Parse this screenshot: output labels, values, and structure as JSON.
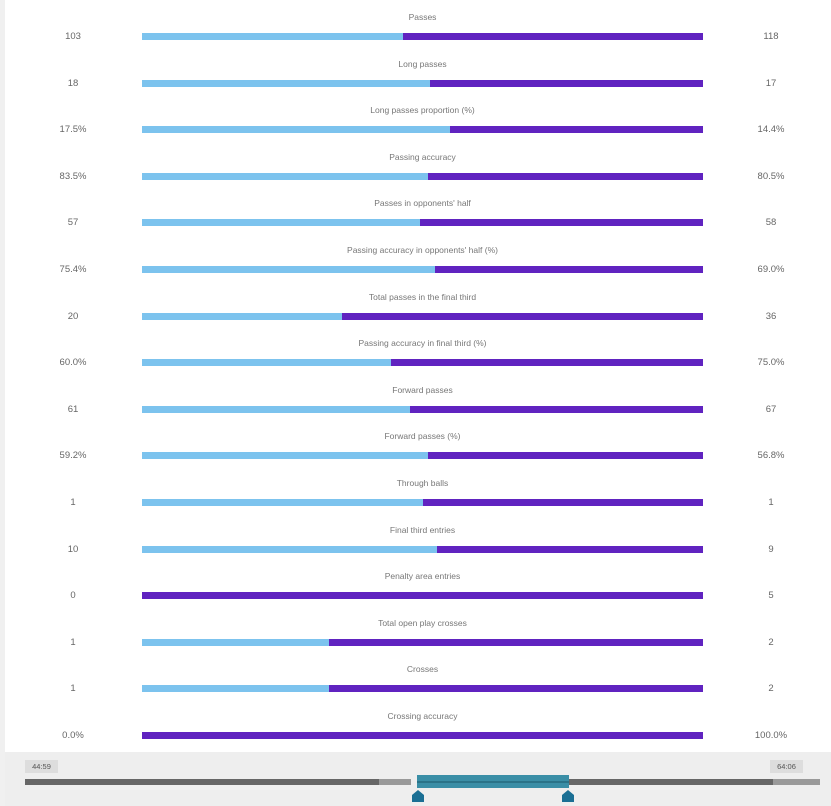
{
  "colors": {
    "home_bar": "#7cc3ee",
    "away_bar": "#6023c0",
    "selection": "#3a8ea6",
    "handle": "#1a6f94"
  },
  "stats": [
    {
      "label": "Passes",
      "home": "103",
      "away": "118",
      "home_share": 0.466
    },
    {
      "label": "Long passes",
      "home": "18",
      "away": "17",
      "home_share": 0.514
    },
    {
      "label": "Long passes proportion (%)",
      "home": "17.5%",
      "away": "14.4%",
      "home_share": 0.549
    },
    {
      "label": "Passing accuracy",
      "home": "83.5%",
      "away": "80.5%",
      "home_share": 0.509
    },
    {
      "label": "Passes in opponents' half",
      "home": "57",
      "away": "58",
      "home_share": 0.496
    },
    {
      "label": "Passing accuracy in opponents' half (%)",
      "home": "75.4%",
      "away": "69.0%",
      "home_share": 0.522
    },
    {
      "label": "Total passes in the final third",
      "home": "20",
      "away": "36",
      "home_share": 0.357
    },
    {
      "label": "Passing accuracy in final third (%)",
      "home": "60.0%",
      "away": "75.0%",
      "home_share": 0.444
    },
    {
      "label": "Forward passes",
      "home": "61",
      "away": "67",
      "home_share": 0.477
    },
    {
      "label": "Forward passes (%)",
      "home": "59.2%",
      "away": "56.8%",
      "home_share": 0.51
    },
    {
      "label": "Through balls",
      "home": "1",
      "away": "1",
      "home_share": 0.5
    },
    {
      "label": "Final third entries",
      "home": "10",
      "away": "9",
      "home_share": 0.526
    },
    {
      "label": "Penalty area entries",
      "home": "0",
      "away": "5",
      "home_share": 0.0
    },
    {
      "label": "Total open play crosses",
      "home": "1",
      "away": "2",
      "home_share": 0.333
    },
    {
      "label": "Crosses",
      "home": "1",
      "away": "2",
      "home_share": 0.333
    },
    {
      "label": "Crossing accuracy",
      "home": "0.0%",
      "away": "100.0%",
      "home_share": 0.0
    }
  ],
  "timeline": {
    "start_time": "44:59",
    "end_time": "64:06",
    "handle_icon": "handle-marker-icon"
  }
}
